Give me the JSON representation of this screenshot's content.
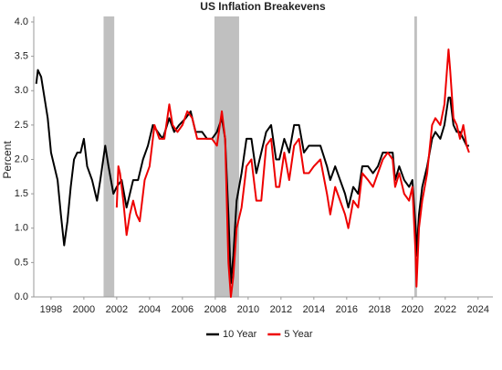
{
  "chart_data": {
    "type": "line",
    "title": "US Inflation Breakevens",
    "y_label": "Percent",
    "xlim": [
      1996.95,
      2024.9
    ],
    "ylim": [
      0,
      4
    ],
    "xticks": [
      1998,
      2000,
      2002,
      2004,
      2006,
      2008,
      2010,
      2012,
      2014,
      2016,
      2018,
      2020,
      2022,
      2024
    ],
    "yticks": [
      {
        "value": 0,
        "label": "0.0"
      },
      0.5,
      {
        "value": 1,
        "label": "1.0"
      },
      1.5,
      {
        "value": 2,
        "label": "2.0"
      },
      2.5,
      {
        "value": 3,
        "label": "3.0"
      },
      3.5,
      {
        "value": 4,
        "label": "4.0"
      }
    ],
    "shaded_periods": [
      [
        2001.2,
        2001.85
      ],
      [
        2007.95,
        2009.45
      ],
      [
        2020.12,
        2020.28
      ]
    ],
    "shade_color": "#c0c0c0",
    "legend": "bottom",
    "series": [
      {
        "name": "10 Year",
        "color": "#000000",
        "x": [
          1997.1,
          1997.2,
          1997.4,
          1997.6,
          1997.8,
          1998.0,
          1998.2,
          1998.4,
          1998.6,
          1998.8,
          1999.0,
          1999.2,
          1999.4,
          1999.6,
          1999.8,
          2000.0,
          2000.2,
          2000.5,
          2000.8,
          2001.0,
          2001.3,
          2001.5,
          2001.8,
          2002.0,
          2002.3,
          2002.6,
          2002.8,
          2003.0,
          2003.3,
          2003.6,
          2003.9,
          2004.2,
          2004.5,
          2004.8,
          2005.2,
          2005.5,
          2005.8,
          2006.2,
          2006.5,
          2006.8,
          2007.2,
          2007.5,
          2007.8,
          2008.1,
          2008.4,
          2008.6,
          2008.8,
          2008.95,
          2009.1,
          2009.3,
          2009.6,
          2009.9,
          2010.2,
          2010.5,
          2010.8,
          2011.1,
          2011.4,
          2011.7,
          2011.9,
          2012.2,
          2012.5,
          2012.8,
          2013.1,
          2013.4,
          2013.7,
          2014.0,
          2014.4,
          2014.8,
          2015.0,
          2015.3,
          2015.6,
          2015.9,
          2016.1,
          2016.4,
          2016.7,
          2016.95,
          2017.3,
          2017.6,
          2017.9,
          2018.2,
          2018.5,
          2018.8,
          2018.95,
          2019.2,
          2019.5,
          2019.8,
          2020.0,
          2020.2,
          2020.25,
          2020.4,
          2020.6,
          2020.9,
          2021.2,
          2021.4,
          2021.7,
          2021.95,
          2022.2,
          2022.3,
          2022.5,
          2022.7,
          2022.9,
          2023.1,
          2023.3,
          2023.45
        ],
        "values": [
          3.1,
          3.3,
          3.2,
          2.9,
          2.6,
          2.1,
          1.9,
          1.7,
          1.2,
          0.75,
          1.1,
          1.6,
          2.0,
          2.1,
          2.1,
          2.3,
          1.9,
          1.7,
          1.4,
          1.7,
          2.2,
          1.9,
          1.5,
          1.6,
          1.7,
          1.3,
          1.5,
          1.7,
          1.7,
          2.0,
          2.2,
          2.5,
          2.4,
          2.3,
          2.6,
          2.4,
          2.5,
          2.6,
          2.7,
          2.4,
          2.4,
          2.3,
          2.3,
          2.4,
          2.6,
          2.3,
          1.2,
          0.2,
          0.6,
          1.4,
          1.8,
          2.3,
          2.3,
          1.8,
          2.1,
          2.4,
          2.5,
          2.0,
          2.0,
          2.3,
          2.1,
          2.5,
          2.5,
          2.1,
          2.2,
          2.2,
          2.2,
          1.9,
          1.7,
          1.9,
          1.7,
          1.5,
          1.3,
          1.6,
          1.5,
          1.9,
          1.9,
          1.8,
          1.9,
          2.1,
          2.1,
          2.1,
          1.7,
          1.9,
          1.7,
          1.6,
          1.7,
          1.0,
          0.6,
          1.2,
          1.6,
          1.9,
          2.3,
          2.4,
          2.3,
          2.5,
          2.9,
          2.9,
          2.5,
          2.4,
          2.4,
          2.3,
          2.2,
          2.2
        ]
      },
      {
        "name": "5 Year",
        "color": "#ee0000",
        "x": [
          2002.0,
          2002.1,
          2002.2,
          2002.4,
          2002.6,
          2002.8,
          2003.0,
          2003.2,
          2003.4,
          2003.7,
          2004.0,
          2004.3,
          2004.6,
          2004.9,
          2005.2,
          2005.4,
          2005.7,
          2006.0,
          2006.3,
          2006.6,
          2006.9,
          2007.2,
          2007.5,
          2007.8,
          2008.1,
          2008.4,
          2008.6,
          2008.8,
          2008.95,
          2009.1,
          2009.3,
          2009.6,
          2009.9,
          2010.2,
          2010.5,
          2010.8,
          2011.1,
          2011.4,
          2011.7,
          2011.9,
          2012.2,
          2012.5,
          2012.8,
          2013.1,
          2013.4,
          2013.7,
          2014.0,
          2014.4,
          2014.8,
          2015.0,
          2015.3,
          2015.6,
          2015.9,
          2016.1,
          2016.4,
          2016.7,
          2016.95,
          2017.3,
          2017.6,
          2017.9,
          2018.2,
          2018.5,
          2018.8,
          2018.95,
          2019.2,
          2019.5,
          2019.8,
          2020.0,
          2020.2,
          2020.25,
          2020.4,
          2020.6,
          2020.9,
          2021.2,
          2021.4,
          2021.7,
          2021.95,
          2022.2,
          2022.3,
          2022.5,
          2022.7,
          2022.9,
          2023.1,
          2023.3,
          2023.45
        ],
        "values": [
          1.3,
          1.9,
          1.8,
          1.4,
          0.9,
          1.2,
          1.4,
          1.2,
          1.1,
          1.7,
          1.9,
          2.5,
          2.3,
          2.3,
          2.8,
          2.5,
          2.4,
          2.5,
          2.7,
          2.6,
          2.3,
          2.3,
          2.3,
          2.3,
          2.2,
          2.7,
          2.3,
          0.5,
          0.0,
          0.3,
          1.0,
          1.3,
          1.9,
          2.0,
          1.4,
          1.4,
          2.2,
          2.3,
          1.6,
          1.6,
          2.1,
          1.7,
          2.2,
          2.3,
          1.8,
          1.8,
          1.9,
          2.0,
          1.5,
          1.2,
          1.6,
          1.4,
          1.2,
          1.0,
          1.4,
          1.3,
          1.8,
          1.7,
          1.6,
          1.8,
          2.0,
          2.1,
          2.0,
          1.6,
          1.8,
          1.5,
          1.4,
          1.6,
          0.6,
          0.15,
          1.0,
          1.4,
          1.8,
          2.5,
          2.6,
          2.5,
          2.8,
          3.6,
          3.3,
          2.6,
          2.5,
          2.3,
          2.5,
          2.2,
          2.1
        ]
      }
    ]
  }
}
